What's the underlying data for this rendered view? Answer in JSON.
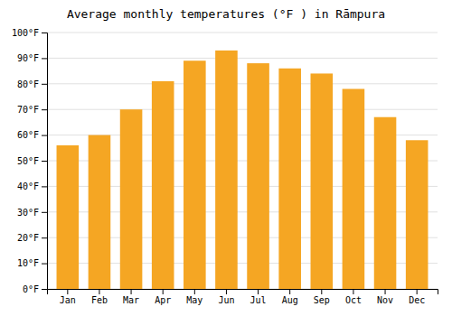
{
  "chart_data": {
    "type": "bar",
    "title": "Average monthly temperatures (°F ) in Rāmpura",
    "categories": [
      "Jan",
      "Feb",
      "Mar",
      "Apr",
      "May",
      "Jun",
      "Jul",
      "Aug",
      "Sep",
      "Oct",
      "Nov",
      "Dec"
    ],
    "values": [
      56,
      60,
      70,
      81,
      89,
      93,
      88,
      86,
      84,
      78,
      67,
      58
    ],
    "color": "#F5A623",
    "ylim": [
      0,
      100
    ],
    "yticks": [
      {
        "value": 0,
        "label": "0°F"
      },
      {
        "value": 10,
        "label": "10°F"
      },
      {
        "value": 20,
        "label": "20°F"
      },
      {
        "value": 30,
        "label": "30°F"
      },
      {
        "value": 40,
        "label": "40°F"
      },
      {
        "value": 50,
        "label": "50°F"
      },
      {
        "value": 60,
        "label": "60°F"
      },
      {
        "value": 70,
        "label": "70°F"
      },
      {
        "value": 80,
        "label": "80°F"
      },
      {
        "value": 90,
        "label": "90°F"
      },
      {
        "value": 100,
        "label": "100°F"
      }
    ],
    "grid": true
  }
}
